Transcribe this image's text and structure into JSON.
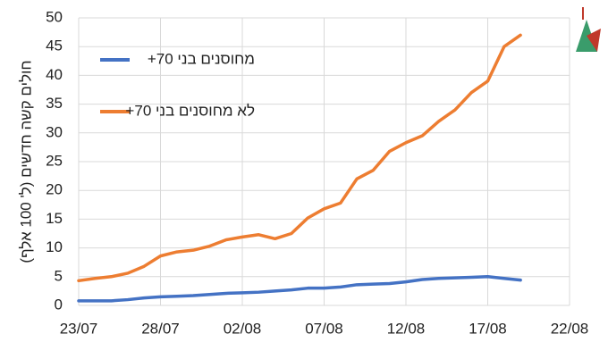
{
  "chart_data": {
    "type": "line",
    "y_label": "חולים קשה חדשים (ל' 100 אלף)",
    "categories": [
      "23/07",
      null,
      null,
      null,
      null,
      "28/07",
      null,
      null,
      null,
      null,
      "02/08",
      null,
      null,
      null,
      null,
      "07/08",
      null,
      null,
      null,
      null,
      "12/08",
      null,
      null,
      null,
      null,
      "17/08",
      null,
      null,
      null,
      null,
      "22/08"
    ],
    "series": [
      {
        "name": "מחוסנים בני 70+",
        "color": "#4472c4",
        "values": [
          0.8,
          0.8,
          0.8,
          1.0,
          1.3,
          1.5,
          1.6,
          1.7,
          1.9,
          2.1,
          2.2,
          2.3,
          2.5,
          2.7,
          3.0,
          3.0,
          3.2,
          3.6,
          3.7,
          3.8,
          4.1,
          4.5,
          4.7,
          4.8,
          4.9,
          5.0,
          4.7,
          4.4,
          null,
          null,
          null
        ]
      },
      {
        "name": "לא מחוסנים בני 70+",
        "color": "#ed7d31",
        "values": [
          4.3,
          4.7,
          5.0,
          5.6,
          6.8,
          8.6,
          9.3,
          9.6,
          10.3,
          11.4,
          11.9,
          12.3,
          11.6,
          12.5,
          15.2,
          16.8,
          17.8,
          22.0,
          23.5,
          26.8,
          28.3,
          29.5,
          32.0,
          34.0,
          37.0,
          39.0,
          45.0,
          47.0,
          null,
          null,
          null
        ]
      }
    ],
    "ylim": [
      0,
      50
    ],
    "yticks": [
      0,
      5,
      10,
      15,
      20,
      25,
      30,
      35,
      40,
      45,
      50
    ],
    "grid": true
  }
}
